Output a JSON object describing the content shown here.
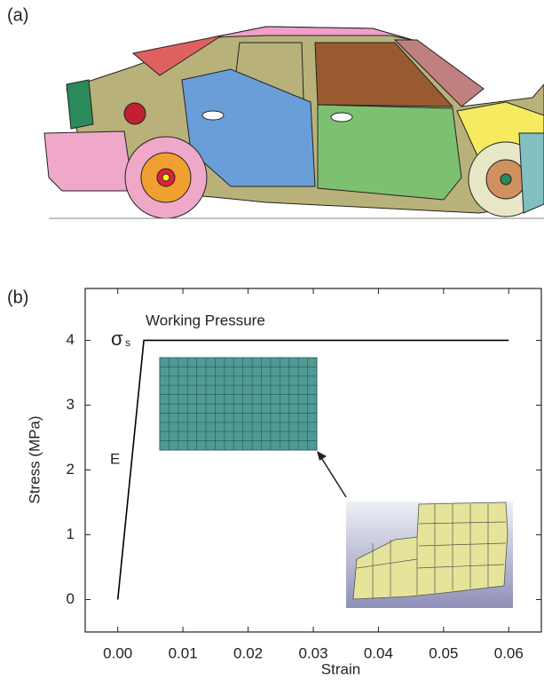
{
  "panel_a": {
    "label": "(a)"
  },
  "chart_data": {
    "type": "line",
    "panel_label": "(b)",
    "x_label": "Strain",
    "y_label": "Stress (MPa)",
    "x": [
      0,
      0.004,
      0.06
    ],
    "values": [
      0,
      4,
      4
    ],
    "color": "#000000",
    "xlim": [
      -0.005,
      0.065
    ],
    "ylim": [
      -0.5,
      4.8
    ],
    "xticks": [
      {
        "value": 0,
        "label": "0.00"
      },
      {
        "value": 0.01,
        "label": "0.01"
      },
      {
        "value": 0.02,
        "label": "0.02"
      },
      {
        "value": 0.03,
        "label": "0.03"
      },
      {
        "value": 0.04,
        "label": "0.04"
      },
      {
        "value": 0.05,
        "label": "0.05"
      },
      {
        "value": 0.06,
        "label": "0.06"
      }
    ],
    "yticks": [
      0,
      1,
      2,
      3,
      4
    ],
    "annotations": {
      "working": "Working Pressure",
      "sigma": "σ",
      "sigma_sub": "s",
      "modulus": "E"
    }
  }
}
